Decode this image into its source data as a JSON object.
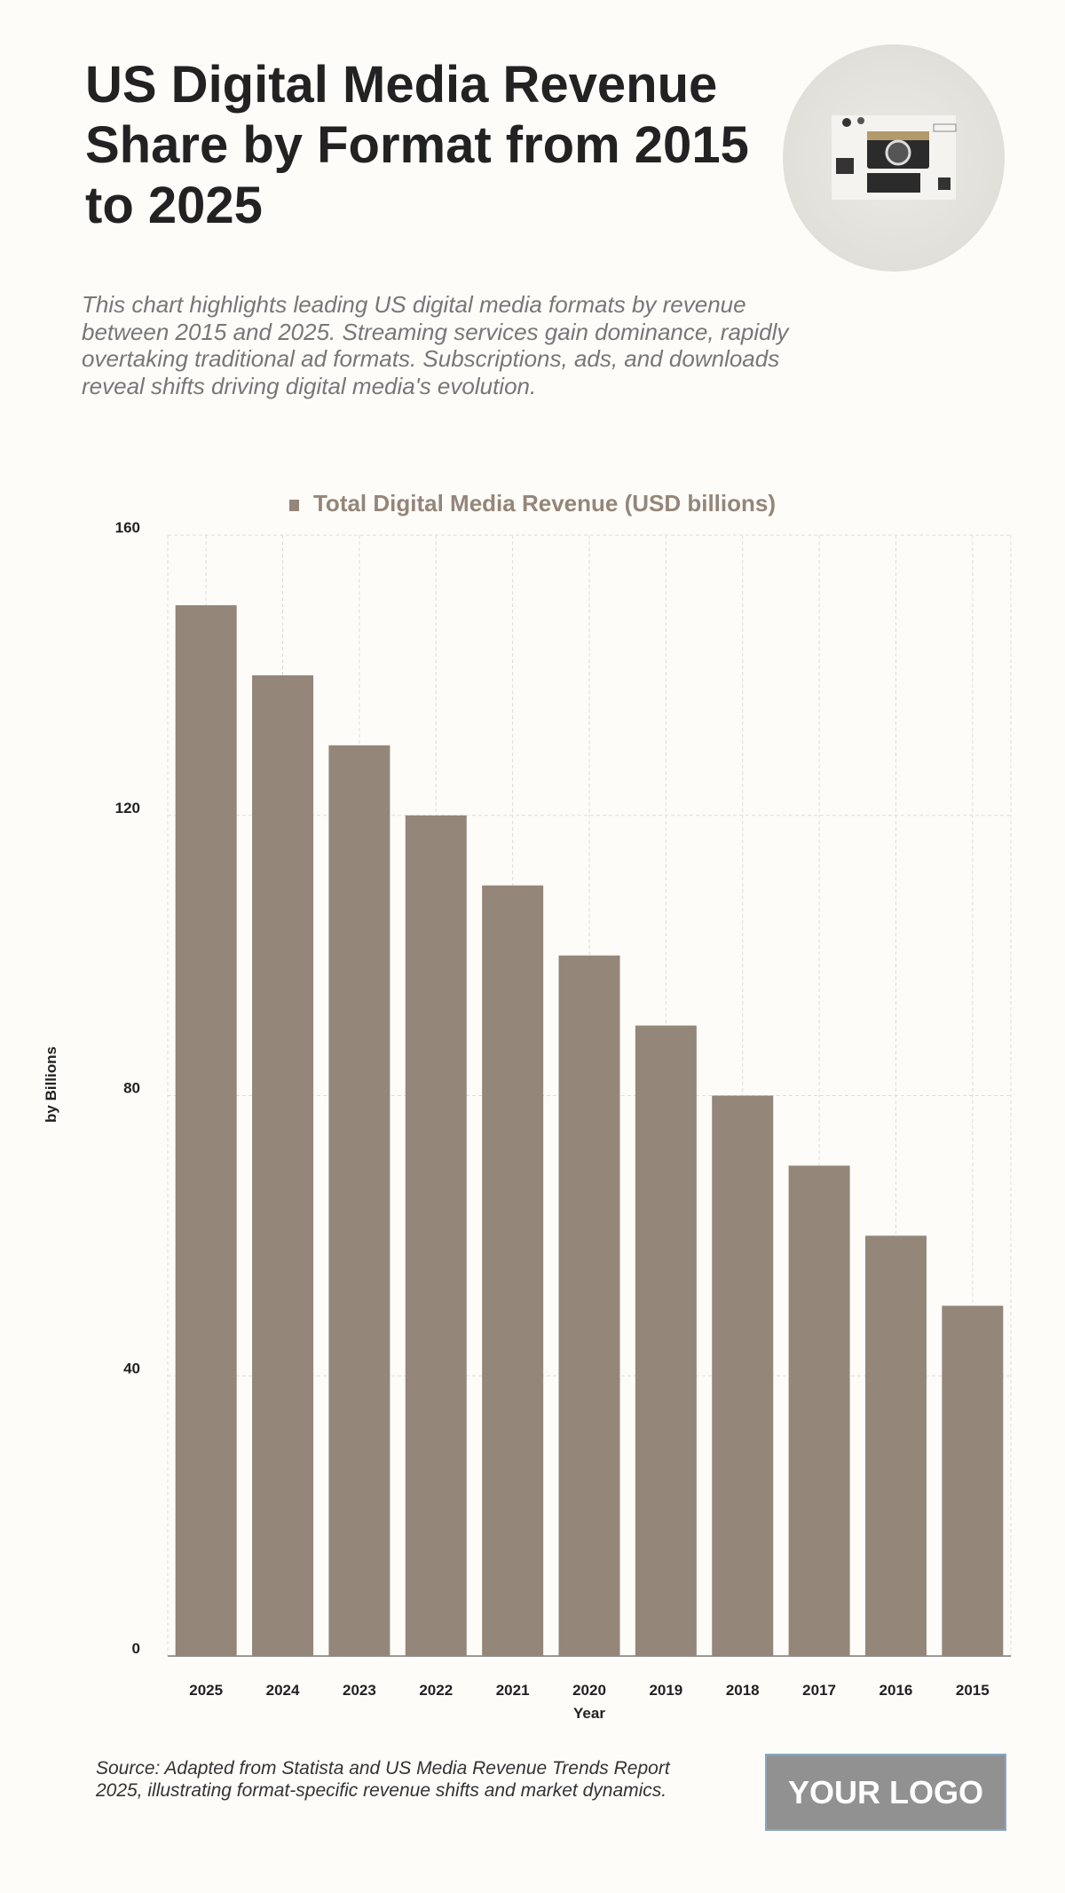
{
  "header": {
    "title": "US Digital Media Revenue Share by Format from 2015 to 2025",
    "subtitle": "This chart highlights leading US digital media formats by revenue between 2015 and 2025. Streaming services gain dominance, rapidly overtaking traditional ad formats. Subscriptions, ads, and downloads reveal shifts driving digital media's evolution."
  },
  "chart_data": {
    "type": "bar",
    "categories": [
      "2025",
      "2024",
      "2023",
      "2022",
      "2021",
      "2020",
      "2019",
      "2018",
      "2017",
      "2016",
      "2015"
    ],
    "series": [
      {
        "name": "Total Digital Media Revenue (USD billions)",
        "values": [
          150,
          140,
          130,
          120,
          110,
          100,
          90,
          80,
          70,
          60,
          50
        ]
      }
    ],
    "xlabel": "Year",
    "ylabel": "by Billions",
    "ylim": [
      0,
      160
    ],
    "yticks": [
      0,
      40,
      80,
      120,
      160
    ],
    "grid": true,
    "legend": "top-center",
    "bar_color": "#948679"
  },
  "footer": {
    "source": "Source: Adapted from Statista and US Media Revenue Trends Report 2025, illustrating format-specific revenue shifts and market dynamics.",
    "logo": "YOUR LOGO"
  }
}
